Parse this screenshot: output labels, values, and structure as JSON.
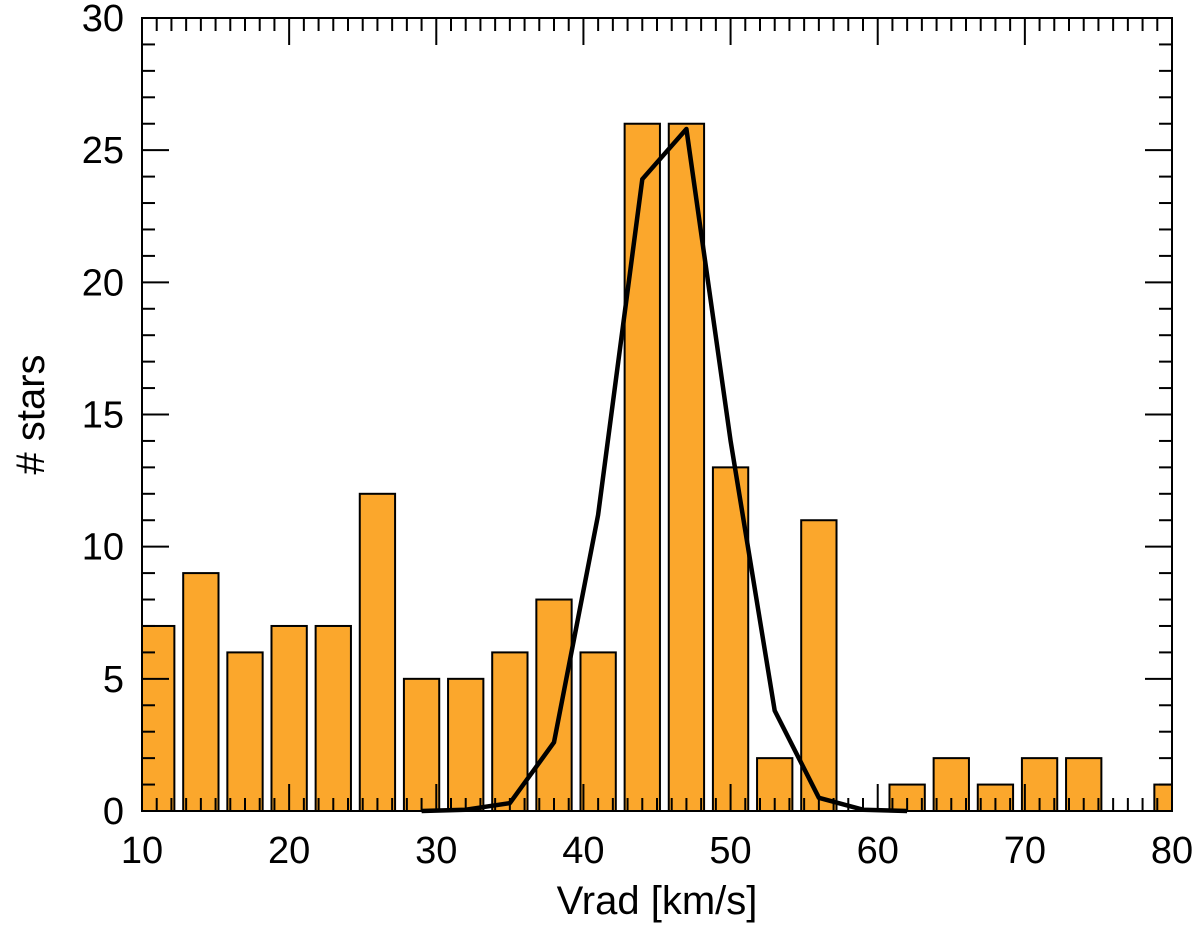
{
  "chart_data": {
    "type": "bar",
    "xlabel": "Vrad [km/s]",
    "ylabel": "# stars",
    "xlim": [
      10,
      80
    ],
    "ylim": [
      0,
      30
    ],
    "x_ticks": [
      10,
      20,
      30,
      40,
      50,
      60,
      70,
      80
    ],
    "y_ticks": [
      0,
      5,
      10,
      15,
      20,
      25,
      30
    ],
    "x_minor_step": 1,
    "y_minor_step": 1,
    "grid": false,
    "bar_width": 2.4,
    "bars": [
      {
        "x": 11.0,
        "value": 7
      },
      {
        "x": 14.0,
        "value": 9
      },
      {
        "x": 17.0,
        "value": 6
      },
      {
        "x": 20.0,
        "value": 7
      },
      {
        "x": 23.0,
        "value": 7
      },
      {
        "x": 26.0,
        "value": 12
      },
      {
        "x": 29.0,
        "value": 5
      },
      {
        "x": 32.0,
        "value": 5
      },
      {
        "x": 35.0,
        "value": 6
      },
      {
        "x": 38.0,
        "value": 8
      },
      {
        "x": 41.0,
        "value": 6
      },
      {
        "x": 44.0,
        "value": 26
      },
      {
        "x": 47.0,
        "value": 26
      },
      {
        "x": 50.0,
        "value": 13
      },
      {
        "x": 53.0,
        "value": 2
      },
      {
        "x": 56.0,
        "value": 11
      },
      {
        "x": 59.0,
        "value": 0
      },
      {
        "x": 62.0,
        "value": 1
      },
      {
        "x": 65.0,
        "value": 2
      },
      {
        "x": 68.0,
        "value": 1
      },
      {
        "x": 71.0,
        "value": 2
      },
      {
        "x": 74.0,
        "value": 2
      },
      {
        "x": 77.0,
        "value": 0
      },
      {
        "x": 80.0,
        "value": 1
      }
    ],
    "fit_curve": [
      {
        "x": 29.0,
        "y": 0.0
      },
      {
        "x": 32.0,
        "y": 0.05
      },
      {
        "x": 35.0,
        "y": 0.3
      },
      {
        "x": 38.0,
        "y": 2.6
      },
      {
        "x": 41.0,
        "y": 11.2
      },
      {
        "x": 44.0,
        "y": 23.9
      },
      {
        "x": 47.0,
        "y": 25.8
      },
      {
        "x": 50.0,
        "y": 14.0
      },
      {
        "x": 53.0,
        "y": 3.8
      },
      {
        "x": 56.0,
        "y": 0.5
      },
      {
        "x": 59.0,
        "y": 0.05
      },
      {
        "x": 62.0,
        "y": 0.0
      }
    ]
  }
}
